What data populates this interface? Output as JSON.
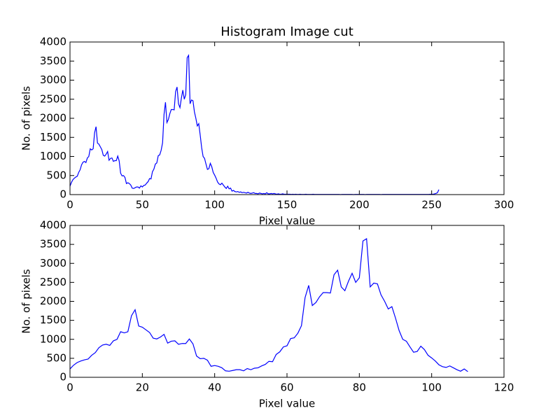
{
  "chart_data": [
    {
      "type": "line",
      "title": "Histogram Image cut",
      "xlabel": "Pixel value",
      "ylabel": "No. of pixels",
      "color": "#0000ff",
      "x": [
        0,
        1,
        2,
        3,
        4,
        5,
        6,
        7,
        8,
        9,
        10,
        11,
        12,
        13,
        14,
        15,
        16,
        17,
        18,
        19,
        20,
        21,
        22,
        23,
        24,
        25,
        26,
        27,
        28,
        29,
        30,
        31,
        32,
        33,
        34,
        35,
        36,
        37,
        38,
        39,
        40,
        41,
        42,
        43,
        44,
        45,
        46,
        47,
        48,
        49,
        50,
        51,
        52,
        53,
        54,
        55,
        56,
        57,
        58,
        59,
        60,
        61,
        62,
        63,
        64,
        65,
        66,
        67,
        68,
        69,
        70,
        71,
        72,
        73,
        74,
        75,
        76,
        77,
        78,
        79,
        80,
        81,
        82,
        83,
        84,
        85,
        86,
        87,
        88,
        89,
        90,
        91,
        92,
        93,
        94,
        95,
        96,
        97,
        98,
        99,
        100,
        101,
        102,
        103,
        104,
        105,
        106,
        107,
        108,
        109,
        110,
        111,
        112,
        113,
        114,
        115,
        116,
        117,
        118,
        119,
        120,
        121,
        122,
        123,
        124,
        125,
        126,
        127,
        128,
        129,
        130,
        131,
        132,
        133,
        134,
        135,
        136,
        137,
        138,
        139,
        140,
        141,
        142,
        143,
        144,
        145,
        146,
        147,
        148,
        149,
        150,
        151,
        152,
        153,
        154,
        155,
        156,
        157,
        158,
        159,
        160,
        161,
        162,
        163,
        164,
        165,
        166,
        167,
        168,
        169,
        170,
        171,
        172,
        173,
        174,
        175,
        176,
        177,
        178,
        179,
        180,
        181,
        182,
        183,
        184,
        185,
        186,
        187,
        188,
        189,
        190,
        191,
        192,
        193,
        194,
        195,
        196,
        197,
        198,
        199,
        200,
        201,
        202,
        203,
        204,
        205,
        206,
        207,
        208,
        209,
        210,
        211,
        212,
        213,
        214,
        215,
        216,
        217,
        218,
        219,
        220,
        221,
        222,
        223,
        224,
        225,
        226,
        227,
        228,
        229,
        230,
        231,
        232,
        233,
        234,
        235,
        236,
        237,
        238,
        239,
        240,
        241,
        242,
        243,
        244,
        245,
        246,
        247,
        248,
        249,
        250,
        251,
        252,
        253,
        254,
        255
      ],
      "values": [
        220,
        320,
        390,
        430,
        460,
        480,
        580,
        650,
        780,
        850,
        870,
        840,
        960,
        1000,
        1200,
        1170,
        1200,
        1620,
        1780,
        1350,
        1320,
        1250,
        1180,
        1030,
        1010,
        1060,
        1130,
        900,
        950,
        960,
        870,
        890,
        890,
        1010,
        880,
        560,
        490,
        500,
        450,
        290,
        310,
        290,
        250,
        170,
        160,
        180,
        200,
        200,
        170,
        230,
        200,
        240,
        250,
        300,
        340,
        420,
        410,
        600,
        670,
        800,
        830,
        1020,
        1040,
        1160,
        1360,
        2100,
        2420,
        1890,
        1970,
        2120,
        2230,
        2230,
        2220,
        2700,
        2820,
        2380,
        2280,
        2530,
        2740,
        2500,
        2620,
        3590,
        3650,
        2380,
        2480,
        2460,
        2170,
        2000,
        1800,
        1860,
        1560,
        1230,
        1000,
        950,
        800,
        660,
        680,
        820,
        730,
        580,
        510,
        430,
        330,
        280,
        260,
        300,
        250,
        200,
        160,
        220,
        150,
        170,
        90,
        110,
        80,
        70,
        80,
        60,
        70,
        50,
        60,
        50,
        40,
        60,
        40,
        30,
        40,
        50,
        30,
        30,
        20,
        40,
        30,
        20,
        30,
        20,
        50,
        20,
        20,
        30,
        20,
        30,
        20,
        10,
        20,
        10,
        10,
        20,
        10,
        10,
        10,
        10,
        10,
        5,
        10,
        5,
        10,
        5,
        5,
        10,
        5,
        5,
        5,
        10,
        5,
        5,
        5,
        5,
        10,
        5,
        5,
        5,
        5,
        5,
        5,
        5,
        5,
        5,
        5,
        5,
        5,
        5,
        5,
        5,
        5,
        5,
        5,
        0,
        5,
        5,
        5,
        5,
        5,
        5,
        5,
        5,
        0,
        5,
        5,
        5,
        5,
        5,
        5,
        5,
        0,
        5,
        5,
        5,
        5,
        5,
        5,
        5,
        5,
        5,
        5,
        0,
        5,
        5,
        5,
        5,
        5,
        5,
        5,
        5,
        5,
        5,
        5,
        5,
        5,
        5,
        5,
        5,
        5,
        5,
        5,
        5,
        5,
        5,
        5,
        5,
        5,
        5,
        5,
        5,
        5,
        5,
        5,
        5,
        5,
        10,
        10,
        10,
        20,
        30,
        50,
        130
      ],
      "xlim": [
        0,
        300
      ],
      "xticks": [
        0,
        50,
        100,
        150,
        200,
        250,
        300
      ],
      "ylim": [
        0,
        4000
      ],
      "yticks": [
        0,
        500,
        1000,
        1500,
        2000,
        2500,
        3000,
        3500,
        4000
      ]
    },
    {
      "type": "line",
      "xlabel": "Pixel value",
      "ylabel": "No. of pixels",
      "color": "#0000ff",
      "x": [
        0,
        1,
        2,
        3,
        4,
        5,
        6,
        7,
        8,
        9,
        10,
        11,
        12,
        13,
        14,
        15,
        16,
        17,
        18,
        19,
        20,
        21,
        22,
        23,
        24,
        25,
        26,
        27,
        28,
        29,
        30,
        31,
        32,
        33,
        34,
        35,
        36,
        37,
        38,
        39,
        40,
        41,
        42,
        43,
        44,
        45,
        46,
        47,
        48,
        49,
        50,
        51,
        52,
        53,
        54,
        55,
        56,
        57,
        58,
        59,
        60,
        61,
        62,
        63,
        64,
        65,
        66,
        67,
        68,
        69,
        70,
        71,
        72,
        73,
        74,
        75,
        76,
        77,
        78,
        79,
        80,
        81,
        82,
        83,
        84,
        85,
        86,
        87,
        88,
        89,
        90,
        91,
        92,
        93,
        94,
        95,
        96,
        97,
        98,
        99,
        100,
        101,
        102,
        103,
        104,
        105,
        106,
        107,
        108,
        109,
        110
      ],
      "values": [
        220,
        320,
        390,
        430,
        460,
        480,
        580,
        650,
        780,
        850,
        870,
        840,
        960,
        1000,
        1200,
        1170,
        1200,
        1620,
        1780,
        1350,
        1320,
        1250,
        1180,
        1030,
        1010,
        1060,
        1130,
        900,
        950,
        960,
        870,
        890,
        890,
        1010,
        880,
        560,
        490,
        500,
        450,
        290,
        310,
        290,
        250,
        170,
        160,
        180,
        200,
        200,
        170,
        230,
        200,
        240,
        250,
        300,
        340,
        420,
        410,
        600,
        670,
        800,
        830,
        1020,
        1040,
        1160,
        1360,
        2100,
        2420,
        1890,
        1970,
        2120,
        2230,
        2230,
        2220,
        2700,
        2820,
        2380,
        2280,
        2530,
        2740,
        2500,
        2620,
        3590,
        3650,
        2380,
        2480,
        2460,
        2170,
        2000,
        1800,
        1860,
        1560,
        1230,
        1000,
        950,
        800,
        660,
        680,
        820,
        730,
        580,
        510,
        430,
        330,
        280,
        260,
        300,
        250,
        200,
        160,
        220,
        150
      ],
      "xlim": [
        0,
        120
      ],
      "xticks": [
        0,
        20,
        40,
        60,
        80,
        100,
        120
      ],
      "ylim": [
        0,
        4000
      ],
      "yticks": [
        0,
        500,
        1000,
        1500,
        2000,
        2500,
        3000,
        3500,
        4000
      ]
    }
  ]
}
